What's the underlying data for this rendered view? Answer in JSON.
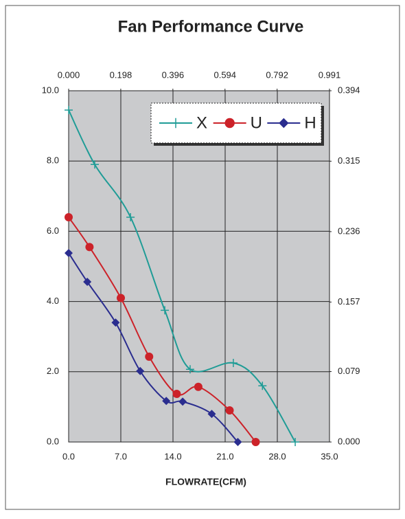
{
  "chart_data": {
    "type": "line",
    "title": "Fan Performance Curve",
    "x_label": "FLOWRATE(CFM)",
    "xlim": [
      0,
      35
    ],
    "xticks": [
      {
        "value": 0,
        "label": "0.0"
      },
      {
        "value": 7,
        "label": "7.0"
      },
      {
        "value": 14,
        "label": "14.0"
      },
      {
        "value": 21,
        "label": "21.0"
      },
      {
        "value": 28,
        "label": "28.0"
      },
      {
        "value": 35,
        "label": "35.0"
      }
    ],
    "x2lim": [
      0,
      0.991
    ],
    "x2ticks": [
      {
        "value": 0,
        "label": "0.000"
      },
      0.198,
      0.396,
      0.594,
      0.792,
      0.991
    ],
    "ylim": [
      0,
      10
    ],
    "yticks": [
      {
        "value": 0,
        "label": "0.0"
      },
      {
        "value": 2,
        "label": "2.0"
      },
      {
        "value": 4,
        "label": "4.0"
      },
      {
        "value": 6,
        "label": "6.0"
      },
      {
        "value": 8,
        "label": "8.0"
      },
      {
        "value": 10,
        "label": "10.0"
      }
    ],
    "y2lim": [
      0,
      0.394
    ],
    "y2ticks": [
      {
        "value": 0,
        "label": "0.000"
      },
      0.079,
      0.157,
      0.236,
      0.315,
      0.394
    ],
    "grid": true,
    "legend": "upper right",
    "series": [
      {
        "name": "X",
        "color": "#1f9c96",
        "marker": "+",
        "x": [
          0,
          3.5,
          8.3,
          12.9,
          16.3,
          22.1,
          26.0,
          30.4
        ],
        "values": [
          9.45,
          7.9,
          6.4,
          3.75,
          2.07,
          2.25,
          1.6,
          0
        ]
      },
      {
        "name": "U",
        "color": "#cc2229",
        "marker": "o",
        "x": [
          0,
          2.8,
          7.0,
          10.8,
          14.5,
          17.4,
          21.6,
          25.1
        ],
        "values": [
          6.4,
          5.55,
          4.1,
          2.43,
          1.37,
          1.57,
          0.9,
          0
        ]
      },
      {
        "name": "H",
        "color": "#2a2d8f",
        "marker": "D",
        "x": [
          0,
          2.5,
          6.3,
          9.6,
          13.1,
          15.3,
          19.2,
          22.7
        ],
        "values": [
          5.38,
          4.56,
          3.4,
          2.02,
          1.17,
          1.15,
          0.8,
          0
        ]
      }
    ]
  }
}
